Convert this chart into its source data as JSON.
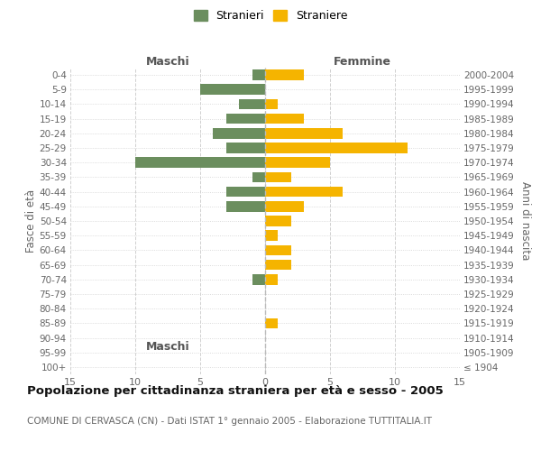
{
  "age_groups": [
    "100+",
    "95-99",
    "90-94",
    "85-89",
    "80-84",
    "75-79",
    "70-74",
    "65-69",
    "60-64",
    "55-59",
    "50-54",
    "45-49",
    "40-44",
    "35-39",
    "30-34",
    "25-29",
    "20-24",
    "15-19",
    "10-14",
    "5-9",
    "0-4"
  ],
  "birth_years": [
    "≤ 1904",
    "1905-1909",
    "1910-1914",
    "1915-1919",
    "1920-1924",
    "1925-1929",
    "1930-1934",
    "1935-1939",
    "1940-1944",
    "1945-1949",
    "1950-1954",
    "1955-1959",
    "1960-1964",
    "1965-1969",
    "1970-1974",
    "1975-1979",
    "1980-1984",
    "1985-1989",
    "1990-1994",
    "1995-1999",
    "2000-2004"
  ],
  "males": [
    0,
    0,
    0,
    0,
    0,
    0,
    -1,
    0,
    0,
    0,
    0,
    -3,
    -3,
    -1,
    -10,
    -3,
    -4,
    -3,
    -2,
    -5,
    -1
  ],
  "females": [
    0,
    0,
    0,
    1,
    0,
    0,
    1,
    2,
    2,
    1,
    2,
    3,
    6,
    2,
    5,
    11,
    6,
    3,
    1,
    0,
    3
  ],
  "male_color": "#6b8e5e",
  "female_color": "#f5b400",
  "xlim": 15,
  "title": "Popolazione per cittadinanza straniera per età e sesso - 2005",
  "subtitle": "COMUNE DI CERVASCA (CN) - Dati ISTAT 1° gennaio 2005 - Elaborazione TUTTITALIA.IT",
  "ylabel_left": "Fasce di età",
  "ylabel_right": "Anni di nascita",
  "xlabel_left": "Maschi",
  "xlabel_right": "Femmine",
  "legend_male": "Stranieri",
  "legend_female": "Straniere",
  "background_color": "#ffffff",
  "grid_color": "#d0d0d0"
}
